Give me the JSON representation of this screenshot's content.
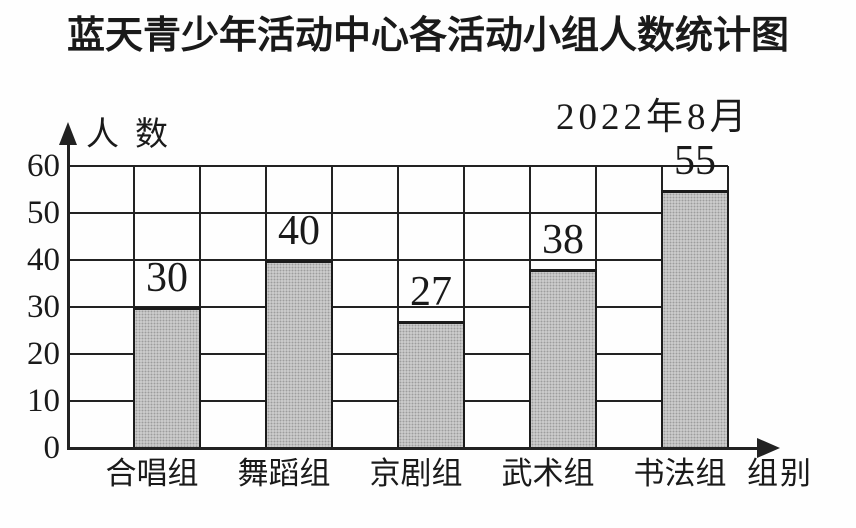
{
  "chart_data": {
    "type": "bar",
    "title": "蓝天青少年活动中心各活动小组人数统计图",
    "annotation": "2022年8月",
    "ylabel": "人数",
    "xlabel": "组别",
    "categories": [
      "合唱组",
      "舞蹈组",
      "京剧组",
      "武术组",
      "书法组"
    ],
    "values": [
      30,
      40,
      27,
      38,
      55
    ],
    "y_ticks": [
      0,
      10,
      20,
      30,
      40,
      50,
      60
    ],
    "ylim": [
      0,
      60
    ],
    "grid": true,
    "legend_position": "none",
    "bar_color": "#cbcbcb",
    "line_color": "#222222",
    "background_color": "#fefefe"
  }
}
